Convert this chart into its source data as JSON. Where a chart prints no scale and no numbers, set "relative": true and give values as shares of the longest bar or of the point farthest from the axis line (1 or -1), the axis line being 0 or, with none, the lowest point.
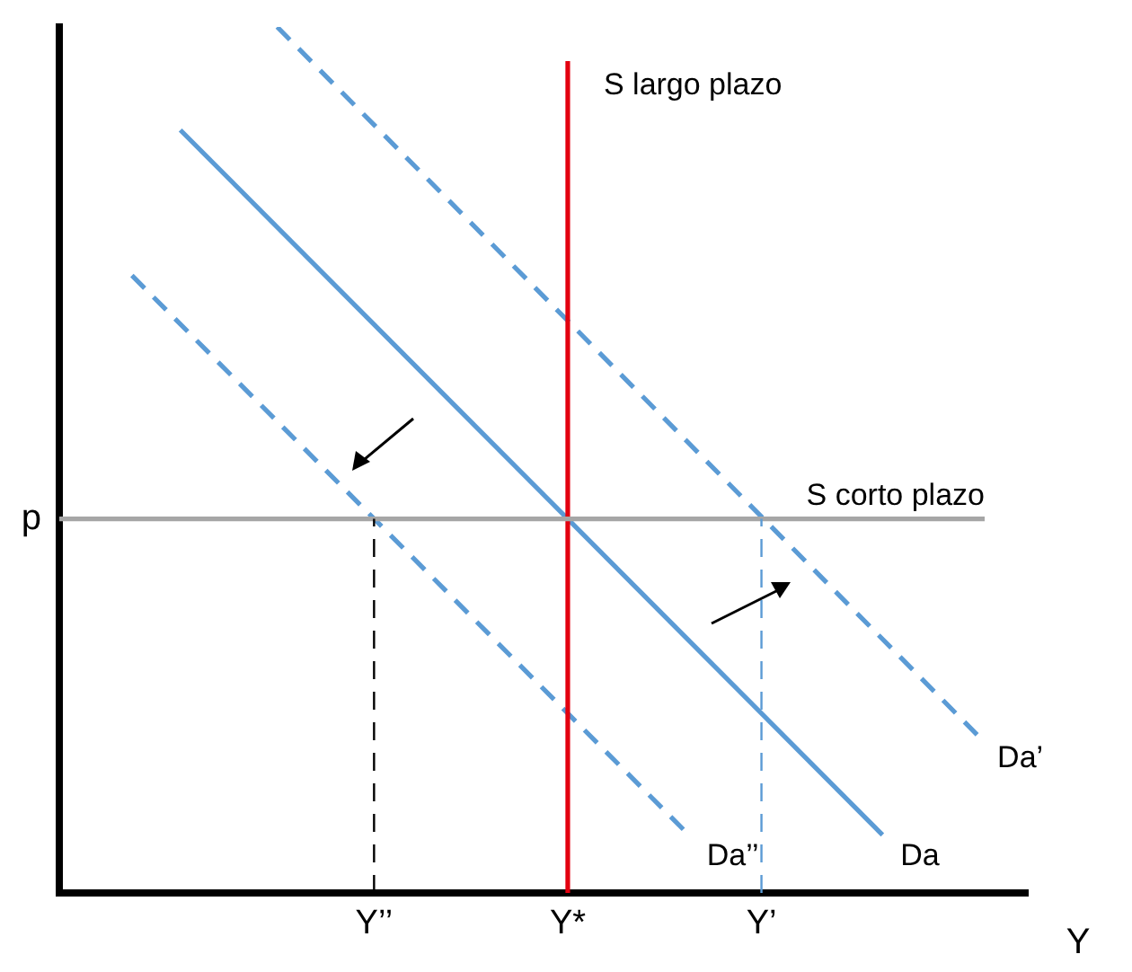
{
  "chart_data": {
    "type": "line",
    "relative": true,
    "xlabel": "Y",
    "categories": [
      null,
      null,
      null,
      null,
      null,
      null,
      null,
      null,
      null,
      null,
      null,
      null,
      null,
      "Y’’",
      null,
      null,
      null,
      null,
      null,
      null,
      null,
      "Y*",
      null,
      null,
      null,
      null,
      null,
      null,
      null,
      "Y’",
      null,
      null,
      null,
      null,
      null,
      null,
      null,
      null,
      null,
      null,
      null
    ],
    "grid": false,
    "legend": false,
    "marker": "none",
    "ylabel": "p",
    "ref_lines": [
      {
        "axis": "x",
        "value": "Y*",
        "label": "S largo plazo",
        "color": "#e3000f",
        "line_style": "solid"
      },
      {
        "axis": "y",
        "value": 0.432,
        "label": "S corto plazo",
        "color": "#a6a6a6",
        "line_style": "solid"
      },
      {
        "axis": "x",
        "value": "Y’’",
        "color": "#000000",
        "line_style": "dashed"
      },
      {
        "axis": "x",
        "value": "Y’",
        "color": "#5b9bd5",
        "line_style": "dashed"
      }
    ],
    "series": [
      {
        "name": "Da",
        "color": "#5b9bd5",
        "line_style": "solid",
        "values": [
          null,
          null,
          null,
          null,
          null,
          0.881,
          null,
          null,
          null,
          null,
          null,
          null,
          null,
          null,
          null,
          null,
          null,
          null,
          null,
          null,
          null,
          null,
          null,
          null,
          null,
          null,
          null,
          null,
          null,
          null,
          null,
          null,
          null,
          null,
          0.067,
          null,
          null,
          null,
          null,
          null,
          null
        ]
      },
      {
        "name": "Da’",
        "color": "#5b9bd5",
        "line_style": "dashed",
        "values": [
          null,
          null,
          null,
          null,
          null,
          null,
          null,
          null,
          null,
          1.0,
          null,
          null,
          null,
          null,
          null,
          null,
          null,
          null,
          null,
          null,
          null,
          null,
          null,
          null,
          null,
          null,
          null,
          null,
          null,
          null,
          null,
          null,
          null,
          null,
          null,
          null,
          null,
          null,
          0.18,
          null,
          null
        ]
      },
      {
        "name": "Da’’",
        "color": "#5b9bd5",
        "line_style": "dashed",
        "values": [
          null,
          null,
          null,
          0.713,
          null,
          null,
          null,
          null,
          null,
          null,
          null,
          null,
          null,
          null,
          null,
          null,
          null,
          null,
          null,
          null,
          null,
          null,
          null,
          null,
          null,
          null,
          0.067,
          null,
          null,
          null,
          null,
          null,
          null,
          null,
          null,
          null,
          null,
          null,
          null,
          null,
          null
        ]
      }
    ]
  }
}
